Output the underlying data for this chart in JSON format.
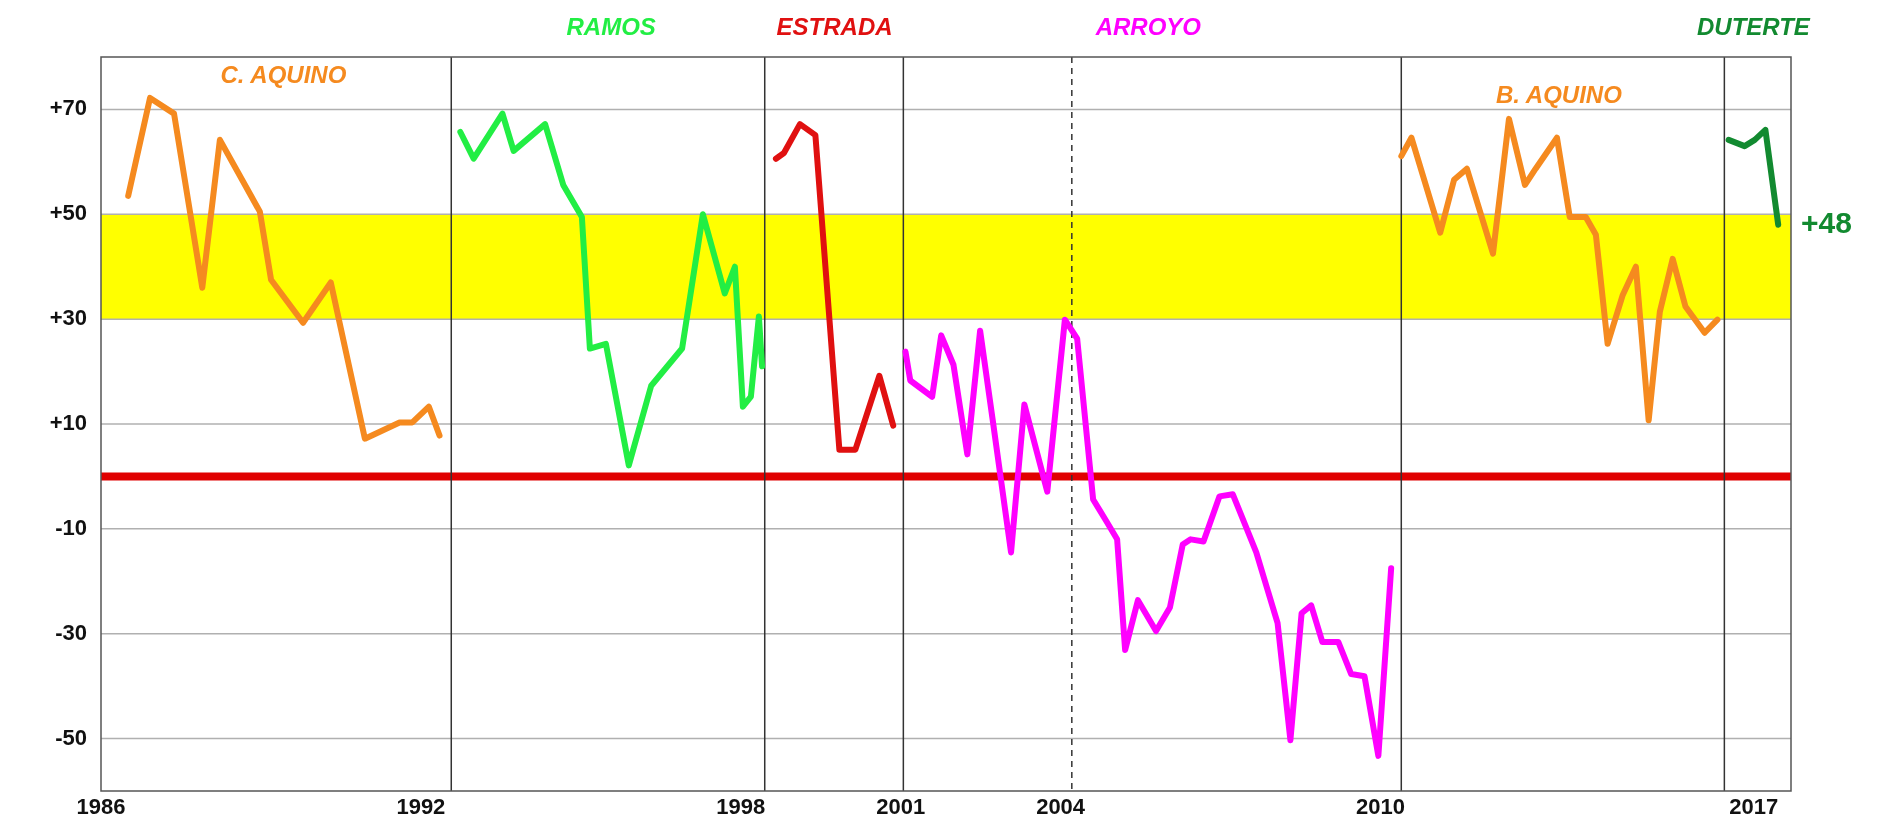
{
  "chart_data": {
    "type": "line",
    "legend": false,
    "grid": "y",
    "line_style": "solid",
    "marker": "none",
    "xlim": [
      1986,
      2017.7
    ],
    "xticks": [
      1986,
      1992,
      1998,
      2001,
      2004,
      2010,
      2017
    ],
    "ylim": [
      -60,
      80
    ],
    "yticks": [
      {
        "value": 70,
        "label": "+70"
      },
      {
        "value": 50,
        "label": "+50"
      },
      {
        "value": 30,
        "label": "+30"
      },
      {
        "value": 10,
        "label": "+10"
      },
      -10,
      -30,
      -50
    ],
    "bands": [
      {
        "axis": "y",
        "from": 30,
        "to": 50,
        "color": "#ffff00"
      }
    ],
    "ref_lines": [
      {
        "axis": "y",
        "value": 0,
        "color": "#e00000",
        "line_style": "solid"
      },
      {
        "axis": "x",
        "value": 1992.57,
        "color": "#333333",
        "line_style": "solid"
      },
      {
        "axis": "x",
        "value": 1998.45,
        "color": "#333333",
        "line_style": "solid"
      },
      {
        "axis": "x",
        "value": 2001.05,
        "color": "#333333",
        "line_style": "solid"
      },
      {
        "axis": "x",
        "value": 2004.21,
        "color": "#333333",
        "line_style": "dashed"
      },
      {
        "axis": "x",
        "value": 2010.39,
        "color": "#333333",
        "line_style": "solid"
      },
      {
        "axis": "x",
        "value": 2016.45,
        "color": "#333333",
        "line_style": "solid"
      }
    ],
    "annotations": [
      {
        "text": "+48",
        "x": 2017.46,
        "y": 48
      }
    ],
    "series": [
      {
        "name": "C. AQUINO",
        "color": "#f58a1f",
        "x": [
          1986.51,
          1986.92,
          1987.37,
          1987.9,
          1988.23,
          1988.98,
          1989.19,
          1989.79,
          1990.31,
          1990.95,
          1991.6,
          1991.84,
          1992.15,
          1992.35
        ],
        "values": [
          53.5,
          72.2,
          69.2,
          36,
          64.2,
          50.5,
          37.5,
          29.3,
          37,
          7.2,
          10.3,
          10.3,
          13.3,
          7.8
        ]
      },
      {
        "name": "RAMOS",
        "color": "#22ee44",
        "x": [
          1992.74,
          1992.99,
          1993.53,
          1993.74,
          1994.33,
          1994.67,
          1995.02,
          1995.17,
          1995.47,
          1995.9,
          1996.32,
          1996.9,
          1997.29,
          1997.7,
          1997.89,
          1998.04,
          1998.19,
          1998.34,
          1998.4
        ],
        "values": [
          65.7,
          60.6,
          69.2,
          62.1,
          67.2,
          55.6,
          49.5,
          24.4,
          25.3,
          2.1,
          17.3,
          24.4,
          50,
          34.9,
          40,
          13.3,
          15.2,
          30.5,
          21
        ]
      },
      {
        "name": "ESTRADA",
        "color": "#e01010",
        "x": [
          1998.66,
          1998.81,
          1999.11,
          1999.4,
          1999.85,
          2000.15,
          2000.6,
          2000.86
        ],
        "values": [
          60.6,
          61.7,
          67.2,
          65.1,
          5.1,
          5.1,
          19.2,
          9.7
        ]
      },
      {
        "name": "ARROYO",
        "color": "#ff00ff",
        "x": [
          2001.09,
          2001.18,
          2001.59,
          2001.76,
          2001.99,
          2002.25,
          2002.49,
          2002.72,
          2003.07,
          2003.32,
          2003.75,
          2004.08,
          2004.31,
          2004.61,
          2004.85,
          2005.06,
          2005.21,
          2005.45,
          2005.79,
          2006.05,
          2006.29,
          2006.44,
          2006.68,
          2006.98,
          2007.23,
          2007.67,
          2008.07,
          2008.31,
          2008.52,
          2008.7,
          2008.91,
          2009.21,
          2009.45,
          2009.7,
          2009.96,
          2010.2
        ],
        "values": [
          23.8,
          18.3,
          15.2,
          26.9,
          21.3,
          4.2,
          27.8,
          11.2,
          -14.5,
          13.7,
          -2.9,
          29.9,
          26.3,
          -4.4,
          -8.4,
          -12,
          -33.1,
          -23.6,
          -29.5,
          -25,
          -13,
          -12,
          -12.4,
          -3.8,
          -3.4,
          -14.5,
          -28,
          -50.3,
          -26.1,
          -24.6,
          -31.6,
          -31.6,
          -37.7,
          -38.1,
          -53.3,
          -17.5
        ]
      },
      {
        "name": "B. AQUINO",
        "color": "#f58a1f",
        "x": [
          2010.39,
          2010.58,
          2011.12,
          2011.38,
          2011.62,
          2012.11,
          2012.41,
          2012.71,
          2012.91,
          2013.31,
          2013.55,
          2013.85,
          2014.04,
          2014.26,
          2014.54,
          2014.79,
          2015.03,
          2015.24,
          2015.48,
          2015.72,
          2016.08,
          2016.32
        ],
        "values": [
          61.1,
          64.6,
          46.5,
          56.6,
          58.7,
          42.5,
          68.2,
          55.6,
          58.7,
          64.6,
          49.5,
          49.5,
          46.1,
          25.3,
          34.5,
          40,
          10.7,
          31.4,
          41.5,
          32.4,
          27.4,
          29.9
        ]
      },
      {
        "name": "DUTERTE",
        "color": "#128a30",
        "x": [
          2016.53,
          2016.83,
          2017.02,
          2017.22,
          2017.46
        ],
        "values": [
          64.2,
          63,
          64.2,
          66.1,
          48
        ]
      }
    ]
  }
}
